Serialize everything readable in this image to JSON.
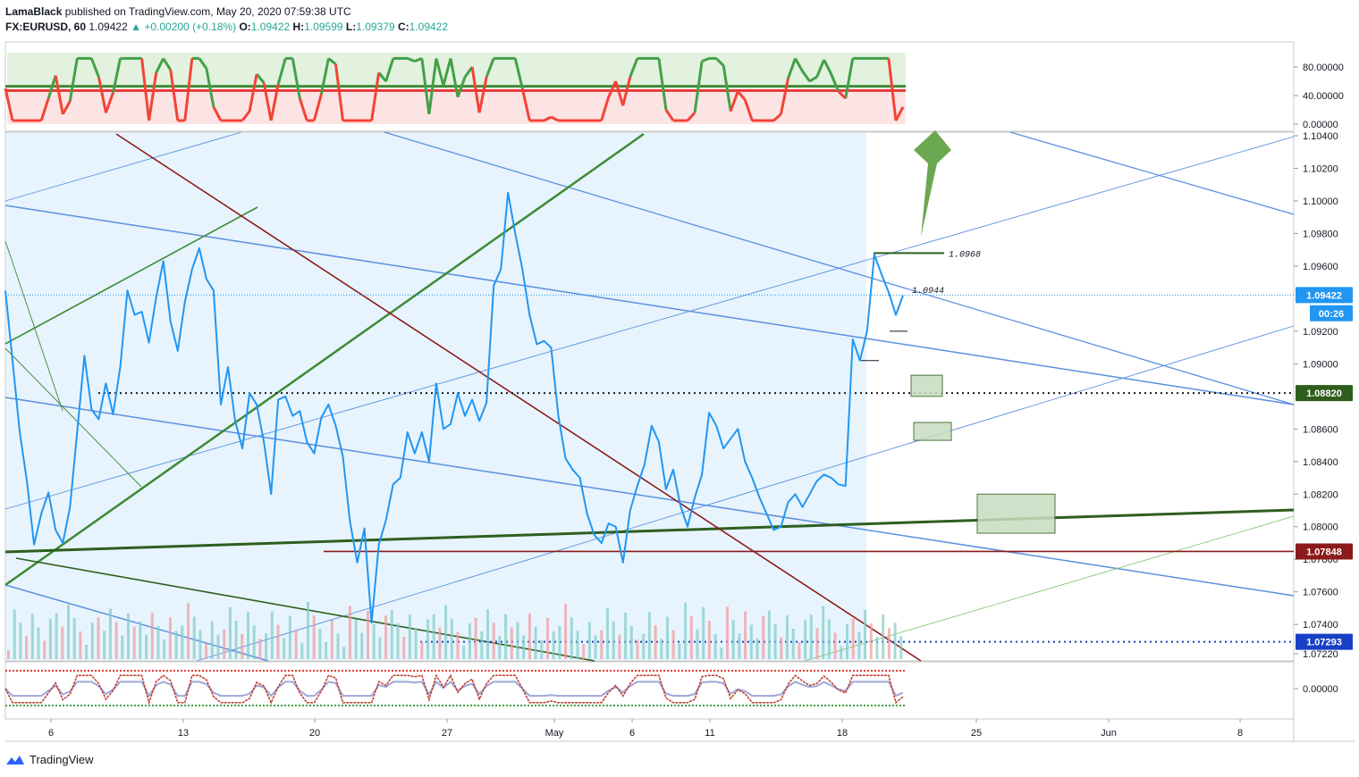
{
  "header": {
    "author": "LamaBlack",
    "published_text": "published on TradingView.com, May 20, 2020 07:59:38 UTC",
    "symbol": "FX:EURUSD, 60",
    "last": "1.09422",
    "change": "+0.00200 (+0.18%)",
    "open_label": "O:",
    "open": "1.09422",
    "high_label": "H:",
    "high": "1.09599",
    "low_label": "L:",
    "low": "1.09379",
    "close_label": "C:",
    "close": "1.09422"
  },
  "footer": {
    "brand": "TradingView"
  },
  "colors": {
    "price": "#2196f3",
    "green_line": "#3c8a34",
    "red_line": "#8b1a1a",
    "blue_line": "#5b8fe0",
    "highlight": "#e3f2fd",
    "oscillator_green": "#43a047",
    "oscillator_red": "#f44336"
  },
  "chart_data": {
    "type": "line",
    "title": "FX:EURUSD, 60",
    "x_tick_labels": [
      "6",
      "13",
      "20",
      "27",
      "May",
      "6",
      "11",
      "18",
      "25",
      "Jun",
      "8"
    ],
    "price_axis": {
      "ticks": [
        "1.10400",
        "1.10200",
        "1.10000",
        "1.09800",
        "1.09600",
        "1.09200",
        "1.09000",
        "1.08600",
        "1.08400",
        "1.08200",
        "1.08000",
        "1.07800",
        "1.07600",
        "1.07400",
        "1.07220"
      ],
      "ylim": [
        1.0722,
        1.104
      ]
    },
    "price_badges": [
      {
        "label": "1.09422",
        "value": 1.09422,
        "color": "#2196f3"
      },
      {
        "label": "00:26",
        "value": 1.0931,
        "color": "#2196f3"
      },
      {
        "label": "1.08820",
        "value": 1.0882,
        "color": "#2e5e1e"
      },
      {
        "label": "1.07848",
        "value": 1.07848,
        "color": "#8b1a1a"
      },
      {
        "label": "1.07293",
        "value": 1.07293,
        "color": "#1a3fc7"
      }
    ],
    "annotations": [
      {
        "text": "1.0968",
        "value": 1.0968
      },
      {
        "text": "1.0944",
        "value": 1.0944
      }
    ],
    "levels": [
      {
        "value": 1.0882,
        "style": "dotted",
        "color": "#1b1b1b"
      },
      {
        "value": 1.07848,
        "style": "solid",
        "color": "#8b1a1a"
      },
      {
        "value": 1.07293,
        "style": "dotted",
        "color": "#1a3fc7"
      }
    ],
    "series": [
      {
        "values": [
          1.0945,
          1.0902,
          1.0858,
          1.0828,
          1.0789,
          1.0808,
          1.0821,
          1.0798,
          1.079,
          1.0812,
          1.0858,
          1.0905,
          1.0872,
          1.0866,
          1.0888,
          1.0869,
          1.0898,
          1.0945,
          1.093,
          1.0932,
          1.0913,
          1.0941,
          1.0963,
          1.0926,
          1.0908,
          1.0938,
          1.0958,
          1.0971,
          1.0952,
          1.0945,
          1.0875,
          1.0898,
          1.0865,
          1.0848,
          1.0882,
          1.0875,
          1.0852,
          1.082,
          1.0878,
          1.088,
          1.0868,
          1.0871,
          1.0852,
          1.0845,
          1.0867,
          1.0875,
          1.0862,
          1.0843,
          1.0803,
          1.0778,
          1.0799,
          1.0741,
          1.0789,
          1.0804,
          1.0826,
          1.083,
          1.0858,
          1.0845,
          1.0858,
          1.084,
          1.0888,
          1.086,
          1.0863,
          1.0882,
          1.0868,
          1.0878,
          1.0865,
          1.0876,
          1.0948,
          1.0958,
          1.1005,
          1.098,
          1.0958,
          1.093,
          1.0912,
          1.0914,
          1.091,
          1.0868,
          1.0842,
          1.0835,
          1.083,
          1.0808,
          1.0795,
          1.079,
          1.0802,
          1.08,
          1.0778,
          1.081,
          1.0825,
          1.0838,
          1.0862,
          1.0852,
          1.0823,
          1.0835,
          1.0813,
          1.08,
          1.0818,
          1.0832,
          1.087,
          1.0862,
          1.0848,
          1.0854,
          1.086,
          1.084,
          1.083,
          1.0818,
          1.0808,
          1.0798,
          1.08,
          1.0815,
          1.082,
          1.0812,
          1.082,
          1.0828,
          1.0832,
          1.083,
          1.0826,
          1.0825,
          1.0915,
          1.0902,
          1.092,
          1.0967,
          1.0955,
          1.0944,
          1.093,
          1.0942
        ],
        "date_range": [
          "2020-04-03",
          "2020-05-20"
        ]
      }
    ],
    "upper_indicator": {
      "ticks": [
        "80.00000",
        "40.00000",
        "0.00000"
      ],
      "ylim": [
        0,
        100
      ],
      "upper_level": 53,
      "lower_level": 47
    },
    "lower_indicator": {
      "ticks": [
        "0.00000"
      ]
    },
    "drawn_target_arrow": "up"
  }
}
